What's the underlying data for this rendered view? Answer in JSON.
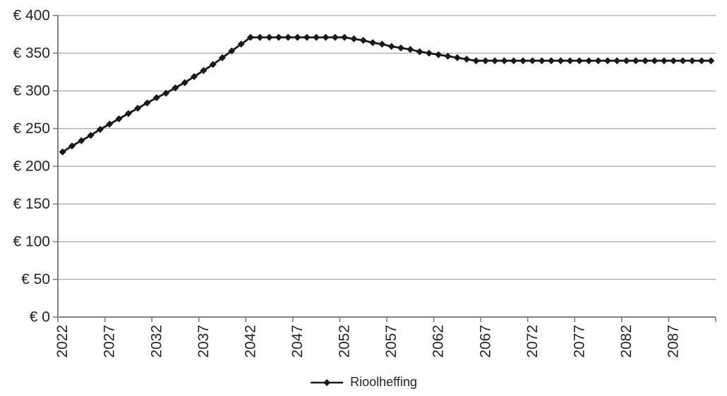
{
  "chart_data": {
    "type": "line",
    "title": "",
    "x_years": [
      2022,
      2023,
      2024,
      2025,
      2026,
      2027,
      2028,
      2029,
      2030,
      2031,
      2032,
      2033,
      2034,
      2035,
      2036,
      2037,
      2038,
      2039,
      2040,
      2041,
      2042,
      2043,
      2044,
      2045,
      2046,
      2047,
      2048,
      2049,
      2050,
      2051,
      2052,
      2053,
      2054,
      2055,
      2056,
      2057,
      2058,
      2059,
      2060,
      2061,
      2062,
      2063,
      2064,
      2065,
      2066,
      2067,
      2068,
      2069,
      2070,
      2071,
      2072,
      2073,
      2074,
      2075,
      2076,
      2077,
      2078,
      2079,
      2080,
      2081,
      2082,
      2083,
      2084,
      2085,
      2086,
      2087,
      2088,
      2089,
      2090,
      2091
    ],
    "series": [
      {
        "name": "Rioolheffing",
        "color": "#1a1a1a",
        "marker": "diamond",
        "values": [
          219,
          227,
          234,
          241,
          249,
          256,
          263,
          270,
          277,
          284,
          291,
          297,
          304,
          311,
          319,
          327,
          335,
          344,
          353,
          362,
          371,
          371,
          371,
          371,
          371,
          371,
          371,
          371,
          371,
          371,
          371,
          369,
          367,
          364,
          362,
          359,
          357,
          355,
          352,
          350,
          348,
          346,
          344,
          342,
          340,
          340,
          340,
          340,
          340,
          340,
          340,
          340,
          340,
          340,
          340,
          340,
          340,
          340,
          340,
          340,
          340,
          340,
          340,
          340,
          340,
          340,
          340,
          340,
          340,
          340
        ]
      }
    ],
    "x_tick_labels": [
      "2022",
      "2027",
      "2032",
      "2037",
      "2042",
      "2047",
      "2052",
      "2057",
      "2062",
      "2067",
      "2072",
      "2077",
      "2082",
      "2087"
    ],
    "x_label_interval": 5,
    "y_ticks": [
      0,
      50,
      100,
      150,
      200,
      250,
      300,
      350,
      400
    ],
    "y_tick_labels": [
      "€ 0",
      "€ 50",
      "€ 100",
      "€ 150",
      "€ 200",
      "€ 250",
      "€ 300",
      "€ 350",
      "€ 400"
    ],
    "ylim": [
      0,
      400
    ],
    "currency_prefix": "€",
    "grid": "horizontal-only",
    "legend_position": "bottom-center",
    "legend_entries": [
      "Rioolheffing"
    ]
  },
  "colors": {
    "background": "#ffffff",
    "gridline": "#a6a6a6",
    "axis": "#7f7f7f",
    "text": "#24242e",
    "series": "#1a1a1a"
  }
}
